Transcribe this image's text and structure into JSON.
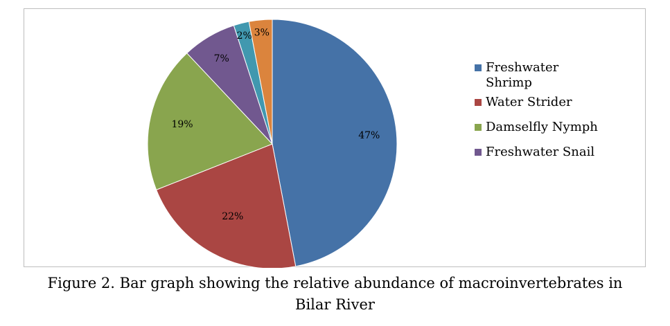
{
  "chart_data": {
    "type": "pie",
    "slices": [
      {
        "label": "Freshwater Shrimp",
        "value": 47,
        "value_label": "47%",
        "color": "#4572a7",
        "in_legend": true
      },
      {
        "label": "Water Strider",
        "value": 22,
        "value_label": "22%",
        "color": "#aa4643",
        "in_legend": true
      },
      {
        "label": "Damselfly Nymph",
        "value": 19,
        "value_label": "19%",
        "color": "#89a54e",
        "in_legend": true
      },
      {
        "label": "Freshwater Snail",
        "value": 7,
        "value_label": "7%",
        "color": "#71588f",
        "in_legend": true
      },
      {
        "label": "",
        "value": 2,
        "value_label": "2%",
        "color": "#4198af",
        "in_legend": false
      },
      {
        "label": "",
        "value": 3,
        "value_label": "3%",
        "color": "#db843d",
        "in_legend": false
      }
    ],
    "legend_position": "right"
  },
  "caption": {
    "line1": "Figure 2. Bar graph showing the relative abundance of macroinvertebrates in",
    "line2": "Bilar River"
  }
}
